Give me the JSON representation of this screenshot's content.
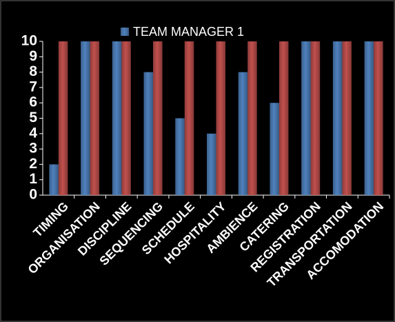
{
  "chart_data": {
    "type": "bar",
    "categories": [
      "TIMING",
      "ORGANISATION",
      "DISCIPLINE",
      "SEQUENCING",
      "SCHEDULE",
      "HOSPITALITY",
      "AMBIENCE",
      "CATERING",
      "REGISTRATION",
      "TRANSPORTATION",
      "ACCOMODATION"
    ],
    "series": [
      {
        "name": "TEAM MANAGER 1",
        "color": "#4f81bd",
        "values": [
          2,
          10,
          10,
          8,
          5,
          4,
          8,
          6,
          10,
          10,
          10
        ]
      },
      {
        "color": "#c0504d",
        "values": [
          10,
          10,
          10,
          10,
          10,
          10,
          10,
          10,
          10,
          10,
          10
        ]
      }
    ],
    "ylim": [
      0,
      10
    ],
    "yticks": [
      0,
      1,
      2,
      3,
      4,
      5,
      6,
      7,
      8,
      9,
      10
    ],
    "legend": "top"
  }
}
